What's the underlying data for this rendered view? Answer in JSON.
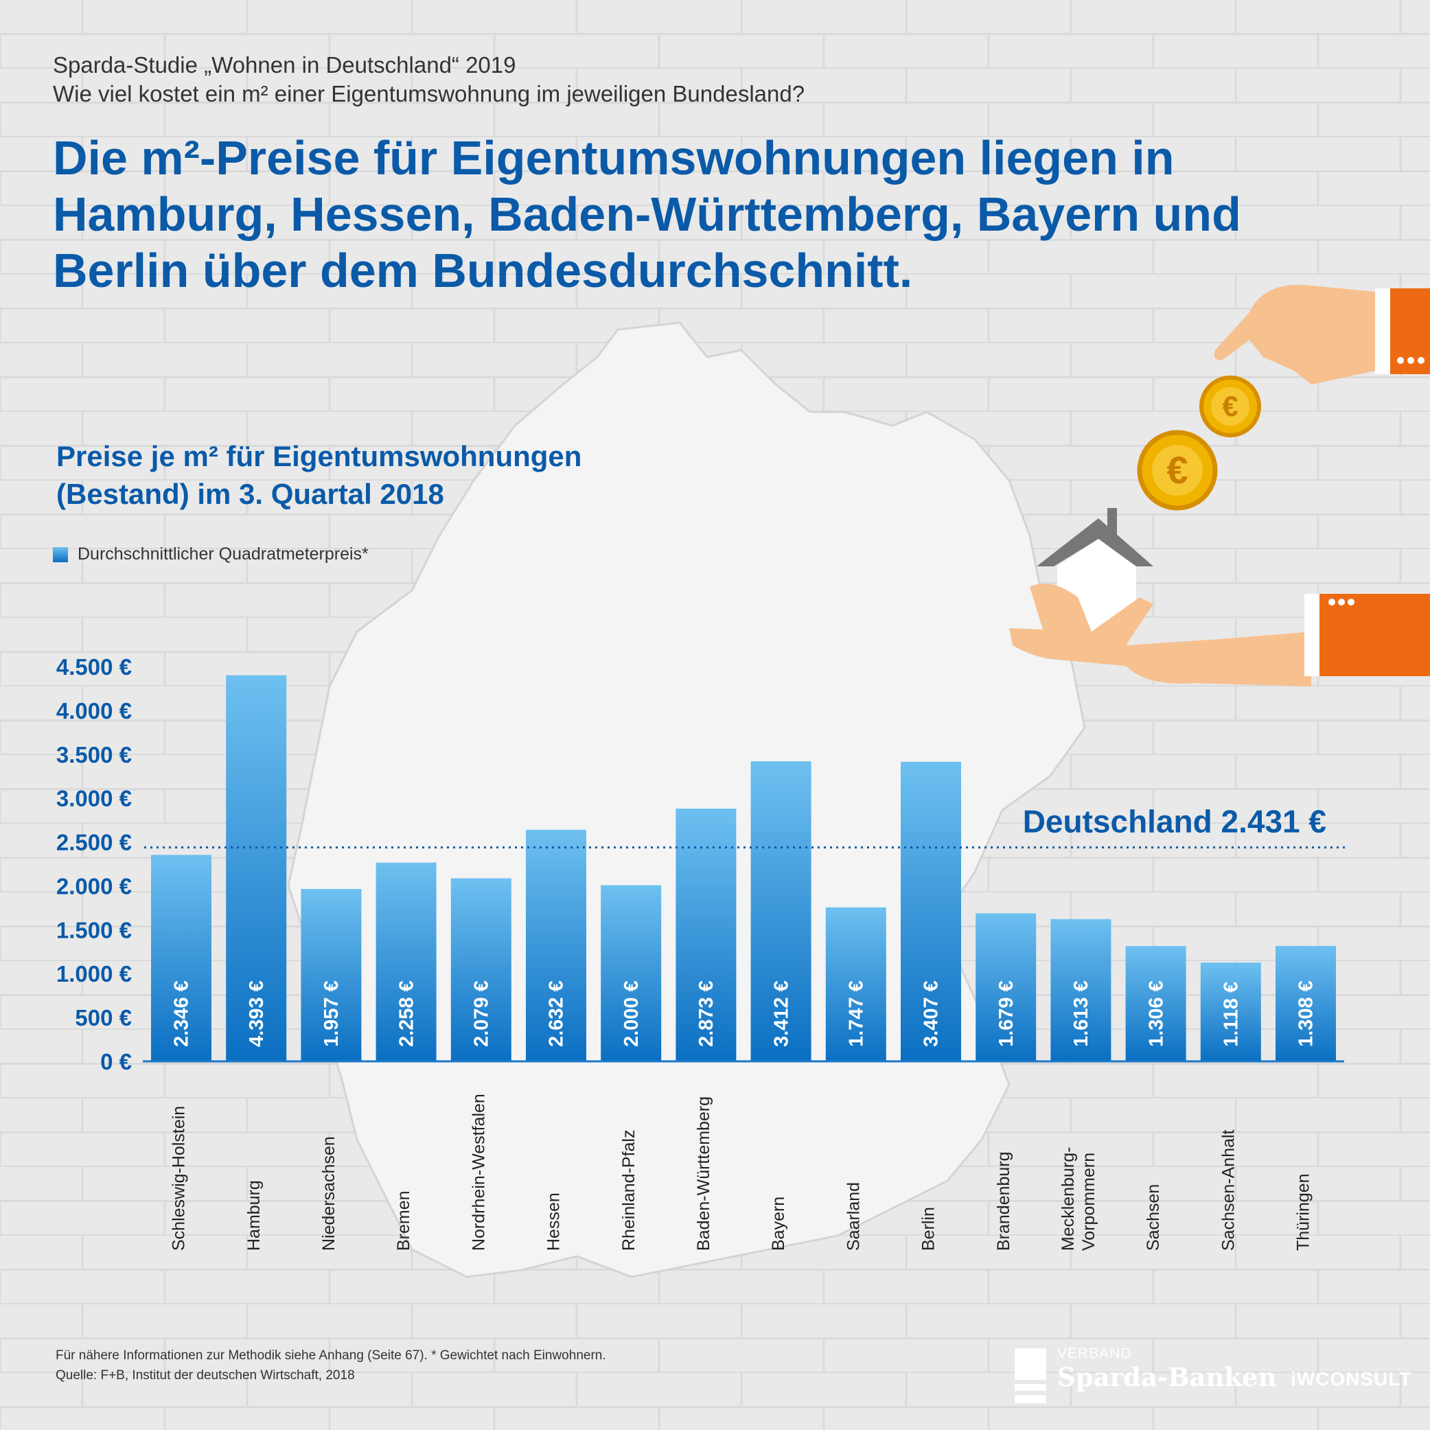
{
  "header": {
    "kicker_line1": "Sparda-Studie „Wohnen in Deutschland“ 2019",
    "kicker_line2": "Wie viel kostet ein m² einer Eigentumswohnung im jeweiligen Bundesland?",
    "headline": "Die m²-Preise für Eigentumswohnungen liegen in Hamburg, Hessen, Baden-Württemberg, Bayern und Berlin über dem Bundesdurchschnitt."
  },
  "chart_title_line1": "Preise je m² für Eigentumswohnungen",
  "chart_title_line2": "(Bestand) im 3. Quartal 2018",
  "legend_label": "Durchschnittlicher Quadratmeterpreis*",
  "reference_line_label": "Deutschland 2.431 €",
  "coin_symbol": "€",
  "chart_data": {
    "type": "bar",
    "categories": [
      "Schleswig-Holstein",
      "Hamburg",
      "Niedersachsen",
      "Bremen",
      "Nordrhein-Westfalen",
      "Hessen",
      "Rheinland-Pfalz",
      "Baden-Württemberg",
      "Bayern",
      "Saarland",
      "Berlin",
      "Brandenburg",
      "Mecklenburg-Vorpommern",
      "Sachsen",
      "Sachsen-Anhalt",
      "Thüringen"
    ],
    "category_label_lines": [
      [
        "Schleswig-Holstein"
      ],
      [
        "Hamburg"
      ],
      [
        "Niedersachsen"
      ],
      [
        "Bremen"
      ],
      [
        "Nordrhein-Westfalen"
      ],
      [
        "Hessen"
      ],
      [
        "Rheinland-Pfalz"
      ],
      [
        "Baden-Württemberg"
      ],
      [
        "Bayern"
      ],
      [
        "Saarland"
      ],
      [
        "Berlin"
      ],
      [
        "Brandenburg"
      ],
      [
        "Mecklenburg-",
        "Vorpommern"
      ],
      [
        "Sachsen"
      ],
      [
        "Sachsen-Anhalt"
      ],
      [
        "Thüringen"
      ]
    ],
    "values": [
      2346,
      4393,
      1957,
      2258,
      2079,
      2632,
      2000,
      2873,
      3412,
      1747,
      3407,
      1679,
      1613,
      1306,
      1118,
      1308
    ],
    "value_labels": [
      "2.346 €",
      "4.393 €",
      "1.957 €",
      "2.258 €",
      "2.079 €",
      "2.632 €",
      "2.000 €",
      "2.873 €",
      "3.412 €",
      "1.747 €",
      "3.407 €",
      "1.679 €",
      "1.613 €",
      "1.306 €",
      "1.118 €",
      "1.308 €"
    ],
    "y_ticks": [
      0,
      500,
      1000,
      1500,
      2000,
      2500,
      3000,
      3500,
      4000,
      4500
    ],
    "y_tick_labels": [
      "0 €",
      "500 €",
      "1.000 €",
      "1.500 €",
      "2.000 €",
      "2.500 €",
      "3.000 €",
      "3.500 €",
      "4.000 €",
      "4.500 €"
    ],
    "ylim": [
      0,
      4500
    ],
    "reference_value": 2431,
    "reference_label": "Deutschland 2.431 €",
    "series_name": "Durchschnittlicher Quadratmeterpreis*",
    "colors": {
      "bar_top": "#6ec0f0",
      "bar_bottom": "#0b6fc2",
      "axis": "#1d78c9",
      "text": "#0a5aa8"
    },
    "grid": false,
    "legend": "top-left"
  },
  "footnote_line1": "Für nähere Informationen zur Methodik siehe Anhang (Seite 67). * Gewichtet nach Einwohnern.",
  "footnote_line2": "Quelle: F+B, Institut der deutschen Wirtschaft, 2018",
  "logos": {
    "sparda_small": "VERBAND",
    "sparda_big": "Sparda-Banken",
    "iw": "iWCONSULT"
  }
}
